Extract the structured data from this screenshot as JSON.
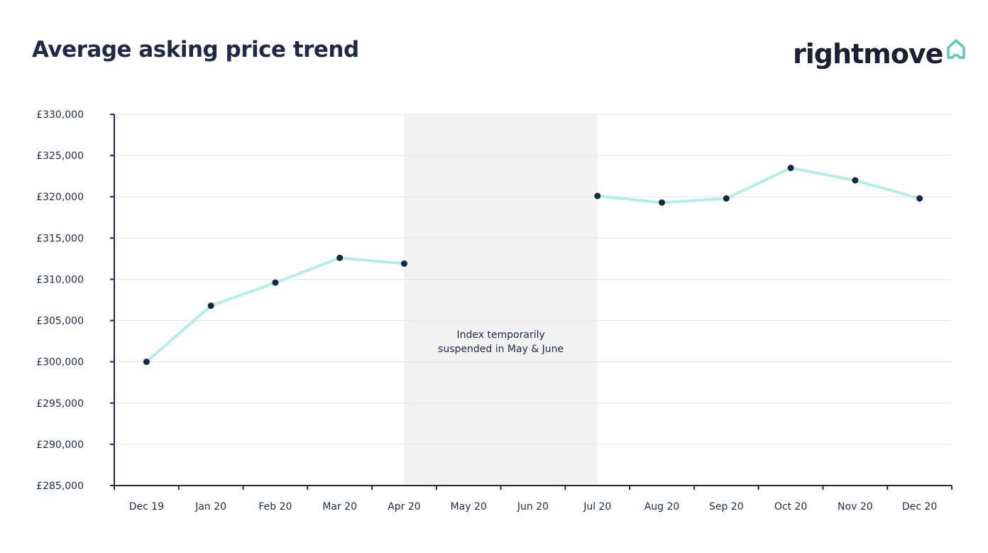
{
  "header": {
    "title": "Average asking price trend",
    "logo_text": "rightmove",
    "logo_icon": "house-outline-icon"
  },
  "colors": {
    "text": "#1e2a47",
    "line": "#b3efe6",
    "point": "#1a2744",
    "axis": "#1e2a47",
    "grid": "#e6e6e6",
    "shade": "#f2f2f2",
    "logo_icon": "#5cc8b4"
  },
  "chart_data": {
    "type": "line",
    "title": "Average asking price trend",
    "xlabel": "",
    "ylabel": "",
    "categories": [
      "Dec 19",
      "Jan 20",
      "Feb 20",
      "Mar 20",
      "Apr 20",
      "May 20",
      "Jun 20",
      "Jul 20",
      "Aug 20",
      "Sep 20",
      "Oct 20",
      "Nov 20",
      "Dec 20"
    ],
    "values": [
      300000,
      306800,
      309600,
      312600,
      311900,
      null,
      null,
      320100,
      319300,
      319800,
      323500,
      322000,
      319800
    ],
    "ylim": [
      285000,
      330000
    ],
    "yticks": [
      285000,
      290000,
      295000,
      300000,
      305000,
      310000,
      315000,
      320000,
      325000,
      330000
    ],
    "ytick_labels": [
      "£285,000",
      "£290,000",
      "£295,000",
      "£300,000",
      "£305,000",
      "£310,000",
      "£315,000",
      "£320,000",
      "£325,000",
      "£330,000"
    ],
    "grid": true,
    "shaded_range": [
      "Apr 20",
      "Jul 20"
    ],
    "annotation": [
      "Index temporarily",
      "suspended in May & June"
    ]
  }
}
